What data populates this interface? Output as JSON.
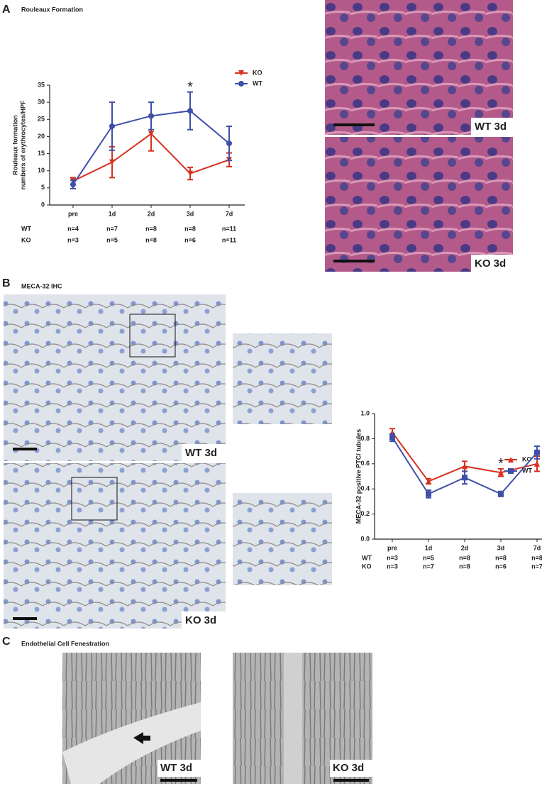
{
  "panels": [
    {
      "label": "A",
      "title": "Rouleaux Formation",
      "images": [
        "WT 3d",
        "KO 3d"
      ]
    },
    {
      "label": "B",
      "title": "MECA-32 IHC",
      "images": [
        "WT 3d",
        "KO 3d"
      ]
    },
    {
      "label": "C",
      "title": "Endothelial Cell Fenestration",
      "images": [
        "WT 3d",
        "KO 3d"
      ]
    }
  ],
  "chart_data": [
    {
      "type": "line",
      "ylabel": [
        "Rouleaux formation",
        "numbers of erythrocytes/HPF"
      ],
      "categories": [
        "pre",
        "1d",
        "2d",
        "3d",
        "7d"
      ],
      "ylim": [
        0,
        35
      ],
      "yticks": [
        0,
        5,
        10,
        15,
        20,
        25,
        30,
        35
      ],
      "series": [
        {
          "name": "KO",
          "color": "#d7301f",
          "marker": "triangle-down",
          "values": [
            7,
            12.5,
            20.8,
            9.2,
            13.2
          ],
          "errors": [
            1,
            4.5,
            5,
            1.8,
            2
          ],
          "n": [
            "n=3",
            "n=5",
            "n=8",
            "n=6",
            "n=11"
          ]
        },
        {
          "name": "WT",
          "color": "#3f4fa8",
          "marker": "circle",
          "values": [
            6,
            23,
            26,
            27.5,
            18
          ],
          "errors": [
            1.2,
            7,
            4,
            5.5,
            5
          ],
          "n": [
            "n=4",
            "n=7",
            "n=8",
            "n=8",
            "n=11"
          ]
        }
      ],
      "annotations": [
        {
          "text": "*",
          "x": "3d"
        }
      ]
    },
    {
      "type": "line",
      "ylabel": [
        "MECA-32 positive PTC/ tubules"
      ],
      "categories": [
        "pre",
        "1d",
        "2d",
        "3d",
        "7d"
      ],
      "ylim": [
        0,
        1
      ],
      "yticks": [
        {
          "value": 0,
          "label": "0.0"
        },
        0.2,
        0.4,
        0.6,
        0.8,
        {
          "value": 1,
          "label": "1.0"
        }
      ],
      "series": [
        {
          "name": "KO",
          "color": "#d7301f",
          "marker": "triangle-up",
          "values": [
            0.85,
            0.46,
            0.58,
            0.53,
            0.6
          ],
          "errors": [
            0.03,
            0.02,
            0.04,
            0.03,
            0.06
          ],
          "n": [
            "n=3",
            "n=7",
            "n=8",
            "n=6",
            "n=7"
          ]
        },
        {
          "name": "WT",
          "color": "#3f4fa8",
          "marker": "square",
          "values": [
            0.81,
            0.36,
            0.49,
            0.36,
            0.69
          ],
          "errors": [
            0.03,
            0.03,
            0.05,
            0.02,
            0.05
          ],
          "n": [
            "n=3",
            "n=5",
            "n=8",
            "n=8",
            "n=8"
          ]
        }
      ],
      "annotations": [
        {
          "text": "*",
          "x": "3d"
        }
      ]
    }
  ]
}
